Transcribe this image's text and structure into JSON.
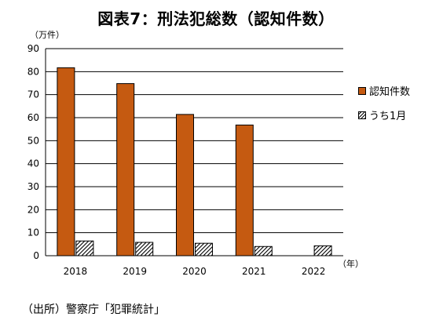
{
  "chart_data": {
    "type": "bar",
    "title": "図表7：刑法犯総数（認知件数）",
    "y_unit": "（万件）",
    "x_unit": "（年）",
    "categories": [
      "2018",
      "2019",
      "2020",
      "2021",
      "2022"
    ],
    "series": [
      {
        "name": "認知件数",
        "color": "#C55A11",
        "values": [
          81.7,
          74.8,
          61.4,
          56.8,
          null
        ]
      },
      {
        "name": "うち1月",
        "pattern": "diagonal-hatch",
        "values": [
          6.4,
          5.8,
          5.4,
          4.0,
          4.3
        ]
      }
    ],
    "ylim": [
      0,
      90
    ],
    "yticks": [
      0,
      10,
      20,
      30,
      40,
      50,
      60,
      70,
      80,
      90
    ],
    "grid": true,
    "legend_position": "right"
  },
  "source_note": "（出所）警察庁「犯罪統計」"
}
